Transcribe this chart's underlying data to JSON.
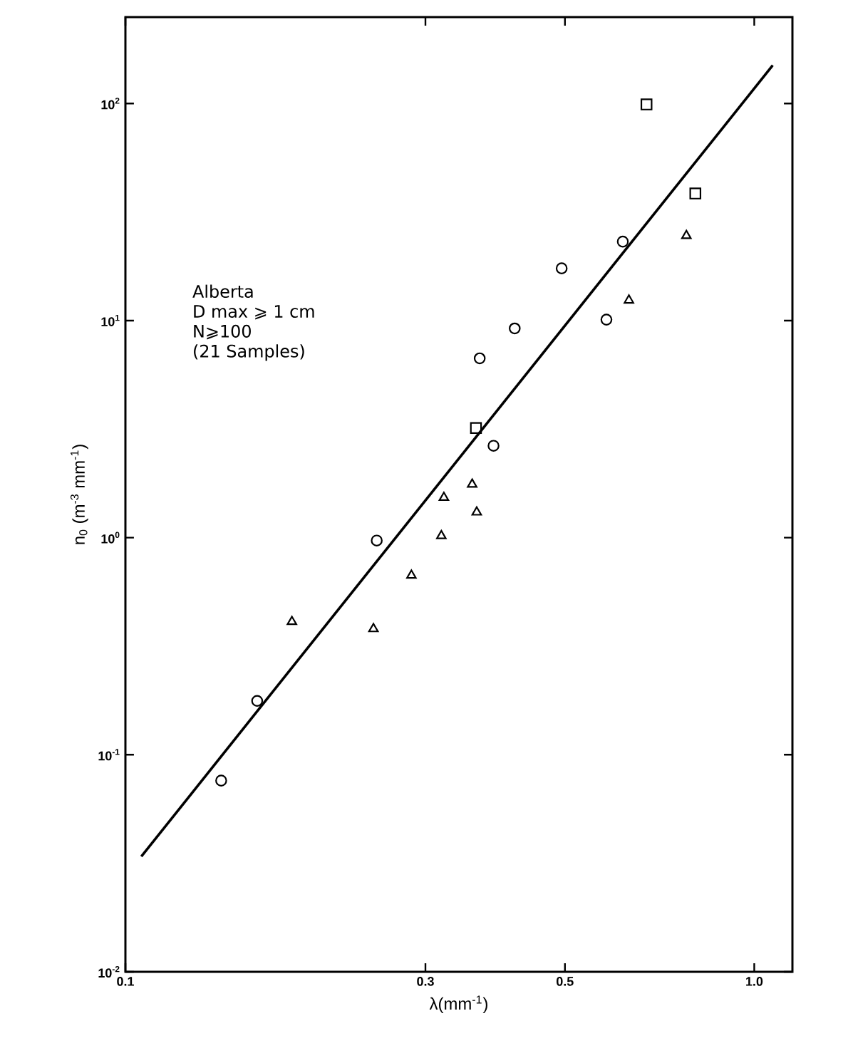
{
  "chart_data": {
    "type": "scatter",
    "xlabel": "λ(mm$^{-1}$)",
    "ylabel": "n$_{0}$ (m$^{-3}$ mm$^{-1}$)",
    "annotations": [
      "Alberta",
      "D max ⩾ 1 cm",
      "N⩾100",
      "(21 Samples)"
    ],
    "log": "xy",
    "grid": false,
    "xlim": [
      0.1,
      1.15
    ],
    "ylim": [
      0.01,
      250
    ],
    "xticks": [
      0.1,
      0.3,
      0.5,
      {
        "value": 1,
        "label": "1.0"
      }
    ],
    "yticks": [
      {
        "value": 0.01,
        "label": "10$^{-2}$"
      },
      {
        "value": 0.1,
        "label": "10$^{-1}$"
      },
      {
        "value": 1,
        "label": "10$^{0}$"
      },
      {
        "value": 10,
        "label": "10$^{1}$"
      },
      {
        "value": 100,
        "label": "10$^{2}$"
      }
    ],
    "series": [
      {
        "marker": "circle",
        "color": "#000000",
        "x": [
          0.618,
          0.494,
          0.582,
          0.416,
          0.366,
          0.385,
          0.251,
          0.162,
          0.142
        ],
        "values": [
          23.1,
          17.4,
          10.1,
          9.2,
          6.7,
          2.65,
          0.97,
          0.177,
          0.076
        ]
      },
      {
        "marker": "triangle",
        "color": "#000000",
        "x": [
          0.356,
          0.321,
          0.362,
          0.318,
          0.285,
          0.184,
          0.248
        ],
        "values": [
          1.76,
          1.53,
          1.31,
          1.02,
          0.67,
          0.41,
          0.38
        ]
      },
      {
        "marker": "triangle",
        "color": "#000000",
        "x": [
          0.78,
          0.632
        ],
        "values": [
          24.6,
          12.4
        ]
      },
      {
        "marker": "square",
        "color": "#000000",
        "x": [
          0.674,
          0.806,
          0.361
        ],
        "values": [
          99,
          38.5,
          3.2
        ]
      },
      {
        "type": "line",
        "marker": "none",
        "line_style": "solid",
        "color": "#000000",
        "x": [
          0.106,
          1.07
        ],
        "values": [
          0.034,
          150
        ]
      }
    ]
  }
}
